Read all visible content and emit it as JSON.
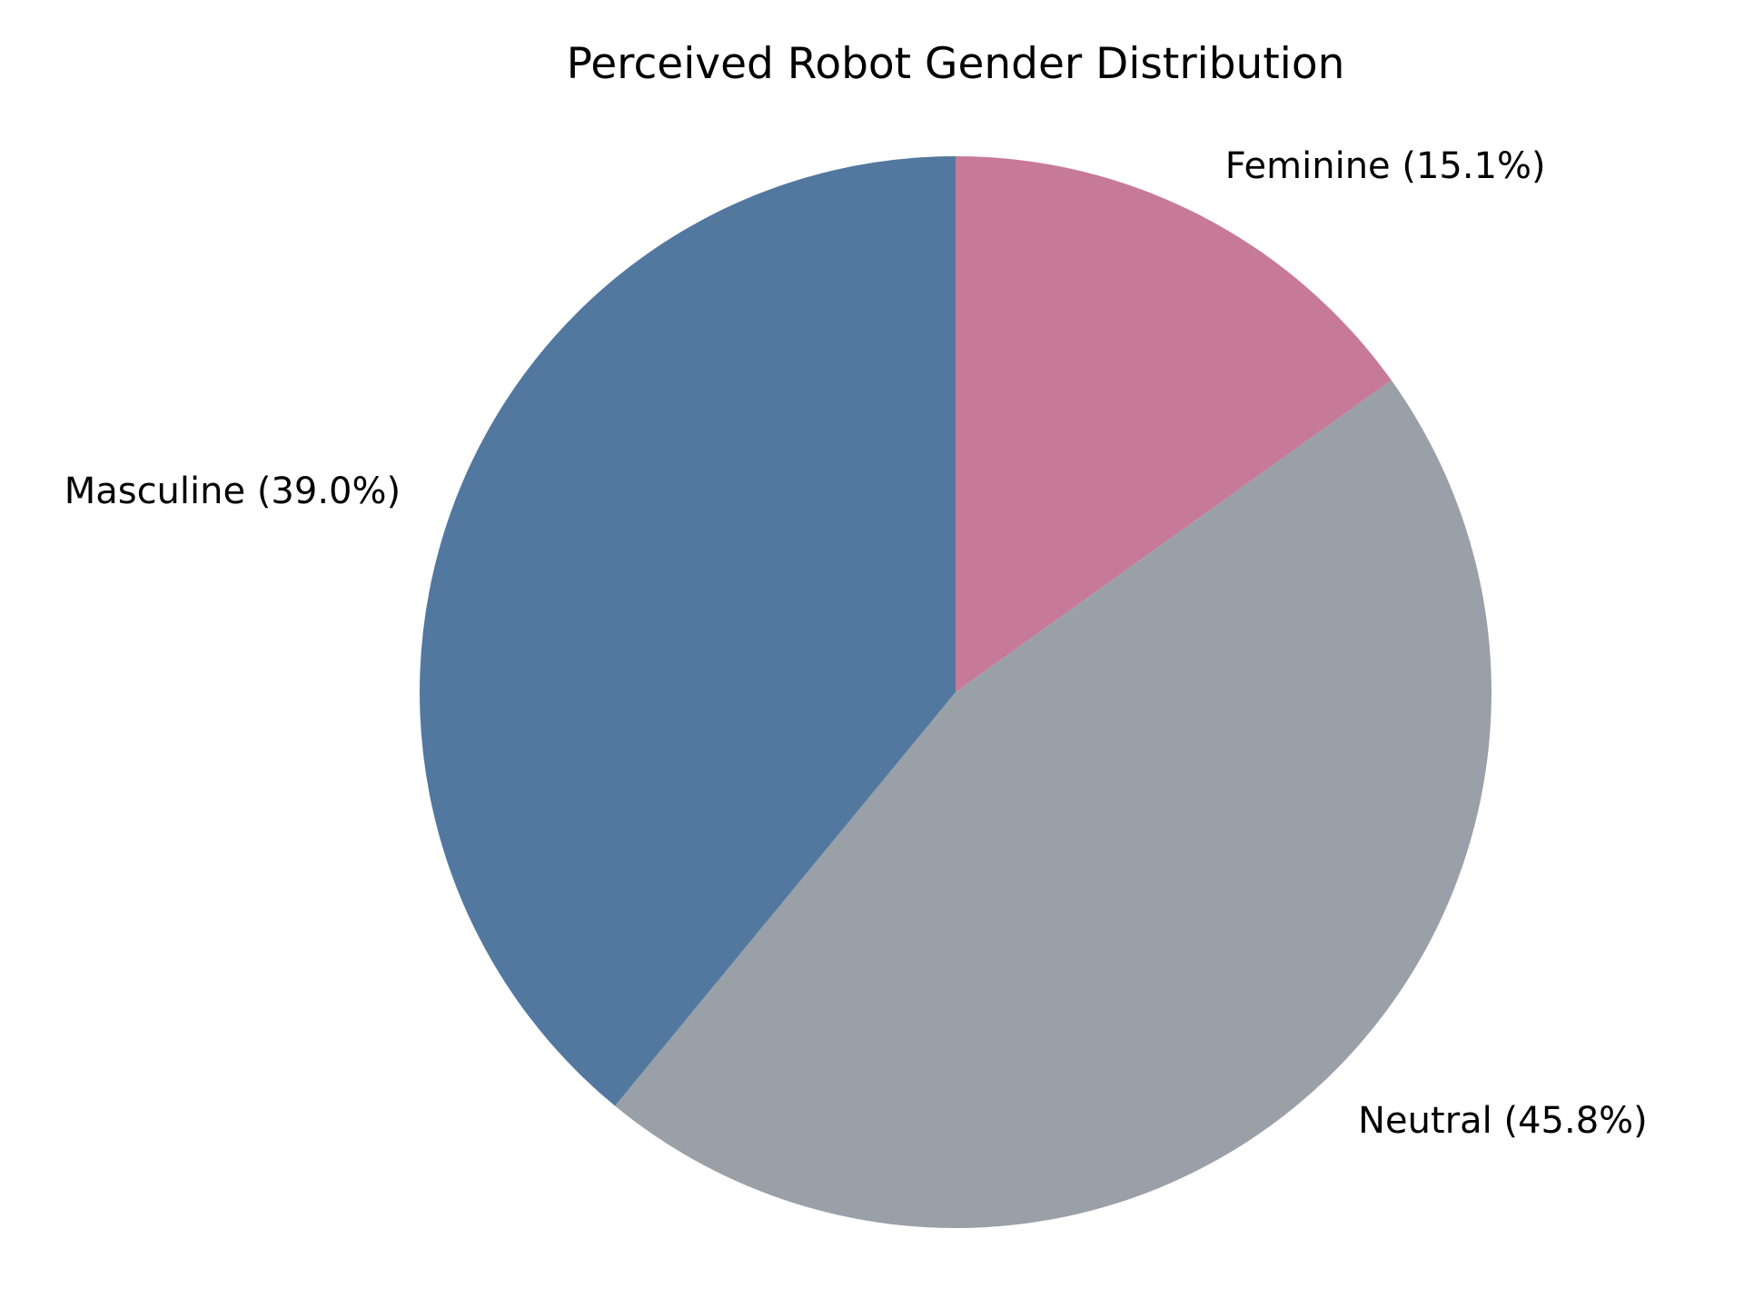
{
  "chart_data": {
    "type": "pie",
    "title": "Perceived Robot Gender Distribution",
    "start_angle_deg": 90,
    "direction": "clockwise",
    "legend": "none",
    "slices": [
      {
        "name": "Feminine",
        "value": 15.1,
        "label": "Feminine (15.1%)",
        "color": "#c77a97"
      },
      {
        "name": "Neutral",
        "value": 45.8,
        "label": "Neutral (45.8%)",
        "color": "#9aa0a8"
      },
      {
        "name": "Masculine",
        "value": 39.0,
        "label": "Masculine (39.0%)",
        "color": "#52789f"
      }
    ]
  }
}
